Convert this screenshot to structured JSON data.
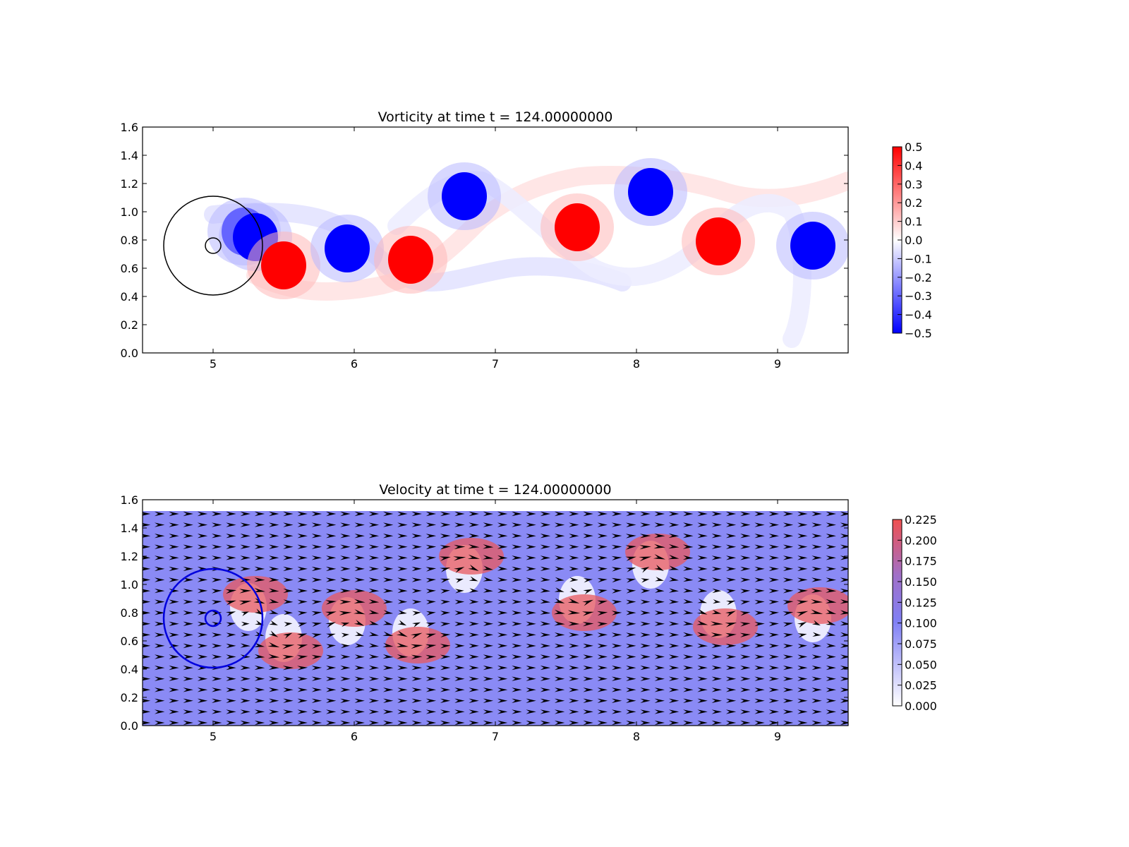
{
  "chart_data": [
    {
      "type": "heatmap",
      "title": "Vorticity at time t =   124.00000000",
      "xlabel": "",
      "ylabel": "",
      "xlim": [
        4.5,
        9.5
      ],
      "ylim": [
        0.0,
        1.6
      ],
      "xticks": [
        "5",
        "6",
        "7",
        "8",
        "9"
      ],
      "yticks": [
        "0.0",
        "0.2",
        "0.4",
        "0.6",
        "0.8",
        "1.0",
        "1.2",
        "1.4",
        "1.6"
      ],
      "colormap": {
        "min_color": "#0000ff",
        "mid_color": "#ffffff",
        "max_color": "#ff0000"
      },
      "colorbar": {
        "range": [
          -0.5,
          0.5
        ],
        "ticks": [
          "0.5",
          "0.4",
          "0.3",
          "0.2",
          "0.1",
          "0.0",
          "−0.1",
          "−0.2",
          "−0.3",
          "−0.4",
          "−0.5"
        ]
      },
      "vortices": [
        {
          "x": 5.22,
          "y": 0.86,
          "value": -0.5
        },
        {
          "x": 5.3,
          "y": 0.82,
          "value": -0.5
        },
        {
          "x": 5.5,
          "y": 0.62,
          "value": 0.5
        },
        {
          "x": 5.95,
          "y": 0.74,
          "value": -0.5
        },
        {
          "x": 6.4,
          "y": 0.66,
          "value": 0.5
        },
        {
          "x": 6.78,
          "y": 1.11,
          "value": -0.5
        },
        {
          "x": 7.58,
          "y": 0.89,
          "value": 0.5
        },
        {
          "x": 8.1,
          "y": 1.14,
          "value": -0.5
        },
        {
          "x": 8.58,
          "y": 0.79,
          "value": 0.5
        },
        {
          "x": 9.25,
          "y": 0.76,
          "value": -0.5
        }
      ],
      "circles": [
        {
          "x": 5.0,
          "y": 0.76,
          "r": 0.35,
          "color": "#000000"
        },
        {
          "x": 5.0,
          "y": 0.76,
          "r": 0.055,
          "color": "#000000"
        }
      ]
    },
    {
      "type": "heatmap",
      "title": "Velocity at time t =   124.00000000",
      "xlabel": "",
      "ylabel": "",
      "xlim": [
        4.5,
        9.5
      ],
      "ylim": [
        0.0,
        1.6
      ],
      "field_ylim": [
        0.0,
        1.52
      ],
      "xticks": [
        "5",
        "6",
        "7",
        "8",
        "9"
      ],
      "yticks": [
        "0.0",
        "0.2",
        "0.4",
        "0.6",
        "0.8",
        "1.0",
        "1.2",
        "1.4",
        "1.6"
      ],
      "colormap": {
        "low_color": "#ffffff",
        "mid_color": "#8080f5",
        "high_color": "#f05050"
      },
      "colorbar": {
        "range": [
          0.0,
          0.225
        ],
        "ticks": [
          "0.225",
          "0.200",
          "0.175",
          "0.150",
          "0.125",
          "0.100",
          "0.075",
          "0.050",
          "0.025",
          "0.000"
        ]
      },
      "background_speed": 0.105,
      "vortices": [
        {
          "x": 5.25,
          "y": 0.84,
          "sign": -1
        },
        {
          "x": 5.5,
          "y": 0.62,
          "sign": 1
        },
        {
          "x": 5.95,
          "y": 0.74,
          "sign": -1
        },
        {
          "x": 6.4,
          "y": 0.66,
          "sign": 1
        },
        {
          "x": 6.78,
          "y": 1.11,
          "sign": -1
        },
        {
          "x": 7.58,
          "y": 0.89,
          "sign": 1
        },
        {
          "x": 8.1,
          "y": 1.14,
          "sign": -1
        },
        {
          "x": 8.58,
          "y": 0.79,
          "sign": 1
        },
        {
          "x": 9.25,
          "y": 0.76,
          "sign": -1
        }
      ],
      "circles": [
        {
          "x": 5.0,
          "y": 0.76,
          "r": 0.35,
          "color": "#0000dd"
        },
        {
          "x": 5.0,
          "y": 0.76,
          "r": 0.055,
          "color": "#0000dd"
        }
      ]
    }
  ]
}
